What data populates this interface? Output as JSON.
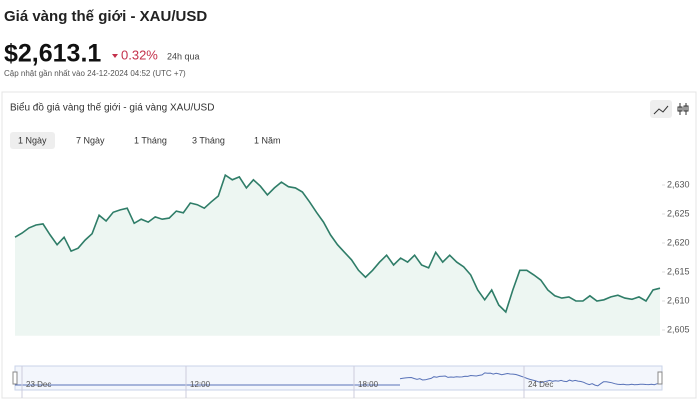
{
  "header": {
    "title": "Giá vàng thế giới - XAU/USD",
    "price": "$2,613.1",
    "change": "0.32%",
    "period": "24h qua",
    "updated": "Cập nhật gần nhất vào 24-12-2024 04:52 (UTC +7)"
  },
  "panel": {
    "title": "Biểu đồ giá vàng thế giới - giá vàng XAU/USD",
    "tabs": [
      "1 Ngày",
      "7 Ngày",
      "1 Tháng",
      "3 Tháng",
      "1 Năm"
    ]
  },
  "chart_data": {
    "type": "area",
    "color": "#2f7d68",
    "fill": "#edf6f2",
    "values": [
      2621.0,
      2621.7,
      2622.6,
      2623.1,
      2623.3,
      2621.4,
      2619.7,
      2621.0,
      2618.6,
      2619.1,
      2620.5,
      2621.6,
      2624.8,
      2623.8,
      2625.3,
      2625.7,
      2626.0,
      2623.4,
      2624.1,
      2623.6,
      2624.5,
      2624.1,
      2624.3,
      2625.5,
      2625.2,
      2626.9,
      2626.6,
      2626.0,
      2627.1,
      2628.1,
      2631.7,
      2630.9,
      2631.4,
      2629.5,
      2630.9,
      2629.8,
      2628.3,
      2629.5,
      2630.5,
      2629.7,
      2629.5,
      2628.8,
      2627.1,
      2625.3,
      2623.6,
      2621.4,
      2619.7,
      2618.4,
      2617.1,
      2615.3,
      2614.1,
      2615.3,
      2616.7,
      2617.9,
      2616.2,
      2617.4,
      2616.7,
      2617.9,
      2616.2,
      2615.7,
      2618.4,
      2616.7,
      2617.9,
      2616.7,
      2615.9,
      2614.5,
      2611.9,
      2610.2,
      2611.9,
      2609.3,
      2608.1,
      2611.9,
      2615.3,
      2615.3,
      2614.5,
      2613.6,
      2611.9,
      2610.9,
      2610.5,
      2610.7,
      2610.0,
      2610.0,
      2610.9,
      2610.0,
      2610.2,
      2610.7,
      2611.0,
      2610.5,
      2610.3,
      2610.7,
      2610.0,
      2611.9,
      2612.2
    ],
    "ylim": [
      2604,
      2637
    ],
    "yticks": [
      {
        "value": 2605,
        "label": "2,605"
      },
      {
        "value": 2610,
        "label": "2,610"
      },
      {
        "value": 2615,
        "label": "2,615"
      },
      {
        "value": 2620,
        "label": "2,620"
      },
      {
        "value": 2625,
        "label": "2,625"
      },
      {
        "value": 2630,
        "label": "2,630"
      }
    ]
  },
  "navigator": {
    "labels": [
      "23 Dec",
      "12:00",
      "18:00",
      "24 Dec"
    ]
  }
}
